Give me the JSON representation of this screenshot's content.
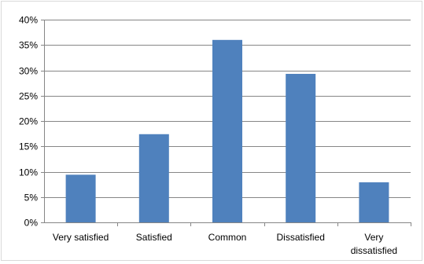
{
  "chart_data": {
    "type": "bar",
    "categories": [
      [
        "Very satisfied"
      ],
      [
        "Satisfied"
      ],
      [
        "Common"
      ],
      [
        "Dissatisfied"
      ],
      [
        "Very",
        "dissatisfied"
      ]
    ],
    "values": [
      9.4,
      17.4,
      36.0,
      29.3,
      7.9
    ],
    "value_unit": "%",
    "ylim": [
      0,
      40
    ],
    "yticks": [
      "0%",
      "5%",
      "10%",
      "15%",
      "20%",
      "25%",
      "30%",
      "35%",
      "40%"
    ],
    "grid": true,
    "legend": "none",
    "title": "",
    "xlabel": "",
    "ylabel": "",
    "colors": {
      "bar": "#4f81bd",
      "grid": "#868686",
      "axis": "#868686",
      "text": "#000000"
    }
  }
}
